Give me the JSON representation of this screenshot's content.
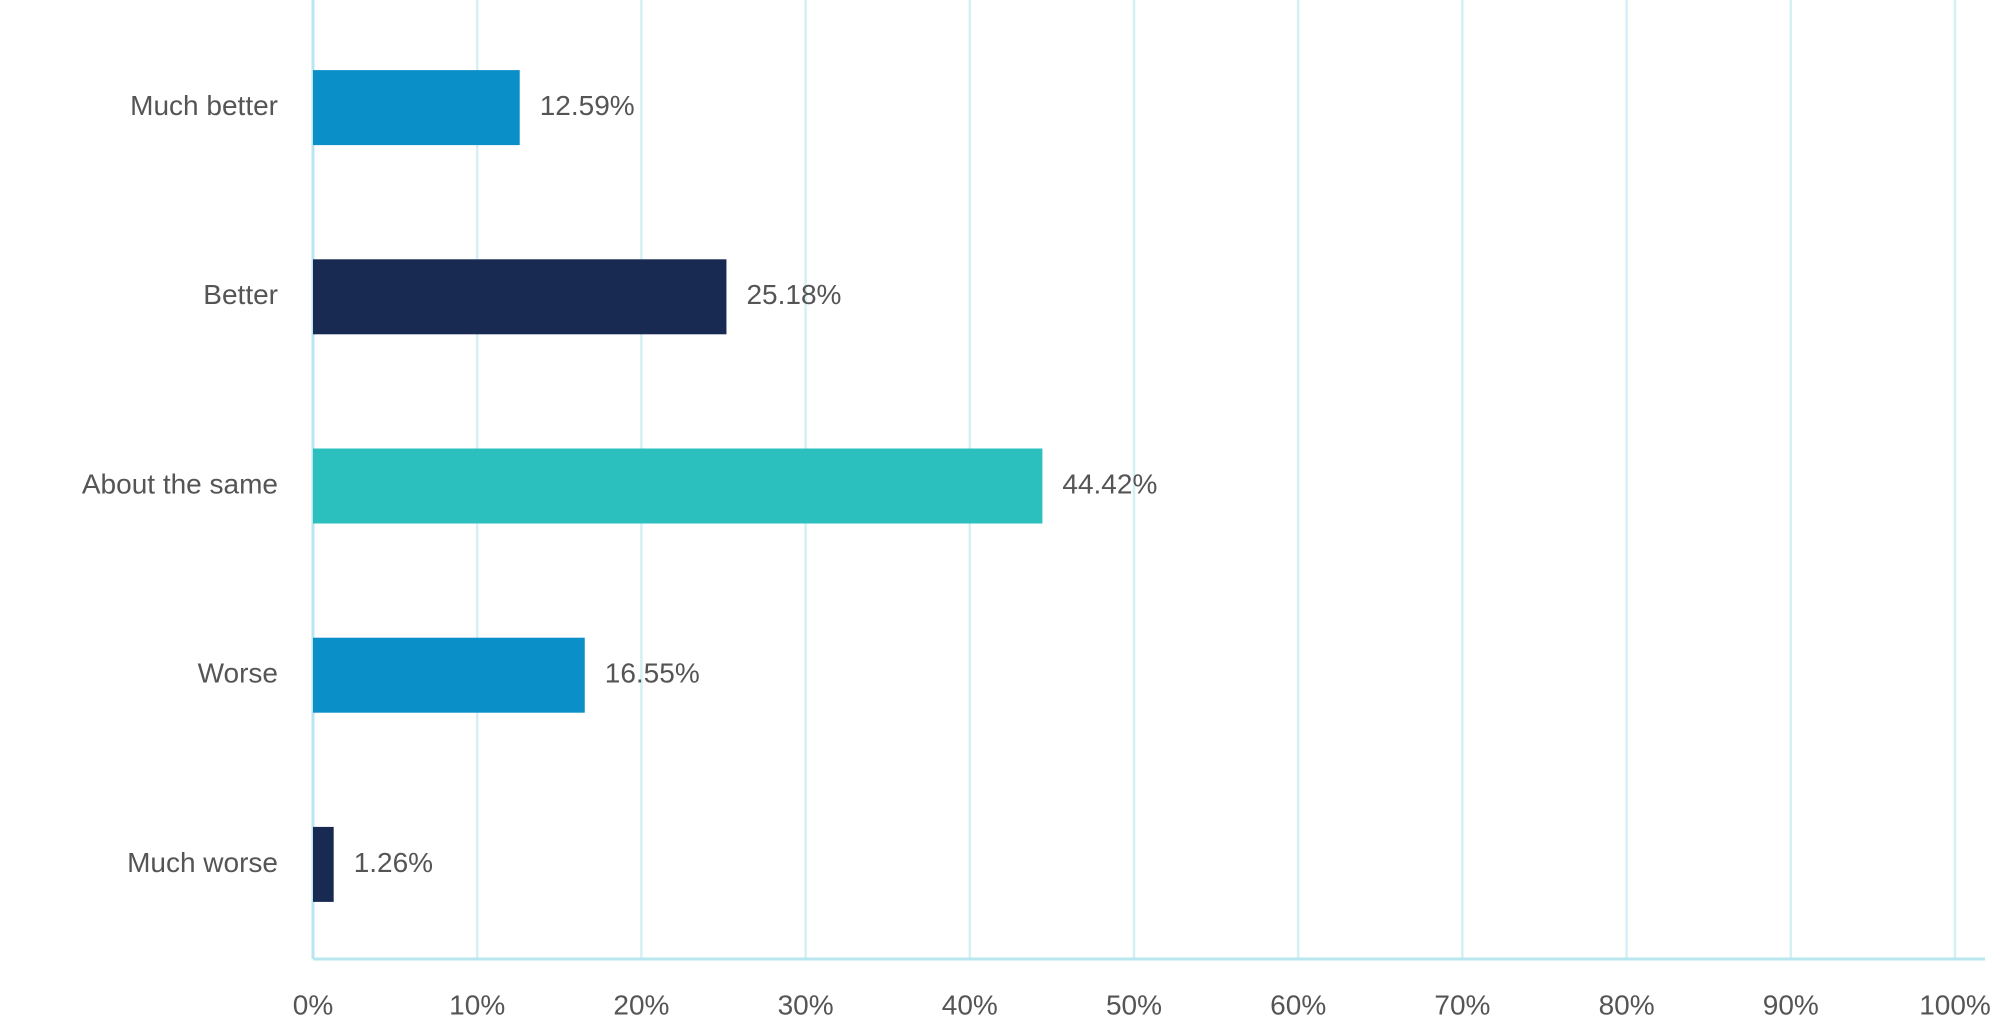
{
  "chart_data": {
    "type": "bar",
    "orientation": "horizontal",
    "categories": [
      "Much better",
      "Better",
      "About the same",
      "Worse",
      "Much worse"
    ],
    "values": [
      12.59,
      25.18,
      44.42,
      16.55,
      1.26
    ],
    "value_labels": [
      "12.59%",
      "25.18%",
      "44.42%",
      "16.55%",
      "1.26%"
    ],
    "colors": [
      "#0a8fc9",
      "#182a52",
      "#2bbfbe",
      "#0a8fc9",
      "#182a52"
    ],
    "xlim": [
      0,
      100
    ],
    "xticks": [
      {
        "value": 0,
        "label": "0%"
      },
      {
        "value": 10,
        "label": "10%"
      },
      {
        "value": 20,
        "label": "20%"
      },
      {
        "value": 30,
        "label": "30%"
      },
      {
        "value": 40,
        "label": "40%"
      },
      {
        "value": 50,
        "label": "50%"
      },
      {
        "value": 60,
        "label": "60%"
      },
      {
        "value": 70,
        "label": "70%"
      },
      {
        "value": 80,
        "label": "80%"
      },
      {
        "value": 90,
        "label": "90%"
      },
      {
        "value": 100,
        "label": "100%"
      }
    ],
    "grid": true
  }
}
